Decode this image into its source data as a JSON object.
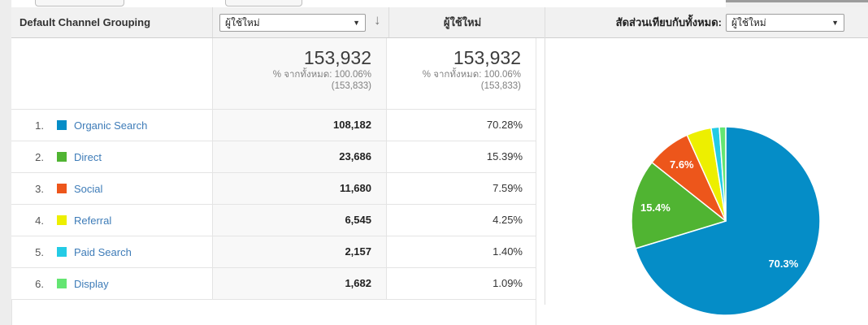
{
  "header": {
    "dimension_label": "Default Channel Grouping",
    "metric_selector_value": "ผู้ใช้ใหม่",
    "select_caret": "▼",
    "sort_icon": "↓",
    "metric_column_label": "ผู้ใช้ใหม่",
    "contribution_label": "สัดส่วนเทียบกับทั้งหมด:",
    "contribution_selector_value": "ผู้ใช้ใหม่"
  },
  "summary": {
    "metric1_total": "153,932",
    "metric1_pct_of_total": "% จากทั้งหมด: 100.06%",
    "metric1_baseline": "(153,833)",
    "metric2_total": "153,932",
    "metric2_pct_of_total": "% จากทั้งหมด: 100.06%",
    "metric2_baseline": "(153,833)"
  },
  "table": {
    "rows": [
      {
        "index": "1.",
        "label": "Organic Search",
        "color": "#058dc7",
        "value": "108,182",
        "pct": "70.28%"
      },
      {
        "index": "2.",
        "label": "Direct",
        "color": "#50b432",
        "value": "23,686",
        "pct": "15.39%"
      },
      {
        "index": "3.",
        "label": "Social",
        "color": "#ed561b",
        "value": "11,680",
        "pct": "7.59%"
      },
      {
        "index": "4.",
        "label": "Referral",
        "color": "#edef00",
        "value": "6,545",
        "pct": "4.25%"
      },
      {
        "index": "5.",
        "label": "Paid Search",
        "color": "#24cbe5",
        "value": "2,157",
        "pct": "1.40%"
      },
      {
        "index": "6.",
        "label": "Display",
        "color": "#64e572",
        "value": "1,682",
        "pct": "1.09%"
      }
    ]
  },
  "chart_data": {
    "type": "pie",
    "labels": [
      "Organic Search",
      "Direct",
      "Social",
      "Referral",
      "Paid Search",
      "Display"
    ],
    "values": [
      108182,
      23686,
      11680,
      6545,
      2157,
      1682
    ],
    "percentages": [
      70.28,
      15.39,
      7.59,
      4.25,
      1.4,
      1.09
    ],
    "colors": [
      "#058dc7",
      "#50b432",
      "#ed561b",
      "#edef00",
      "#24cbe5",
      "#64e572"
    ],
    "slice_labels": [
      "70.3%",
      "15.4%",
      "7.6%",
      "",
      "",
      ""
    ],
    "start_angle_deg": 0,
    "direction": "clockwise",
    "legend_position": "table-left"
  },
  "colors": {
    "link": "#3e7cb8",
    "header_bg": "#f1f1f1",
    "sorted_column_bg": "#f8f8f8",
    "row_border": "#e4e4e4"
  }
}
